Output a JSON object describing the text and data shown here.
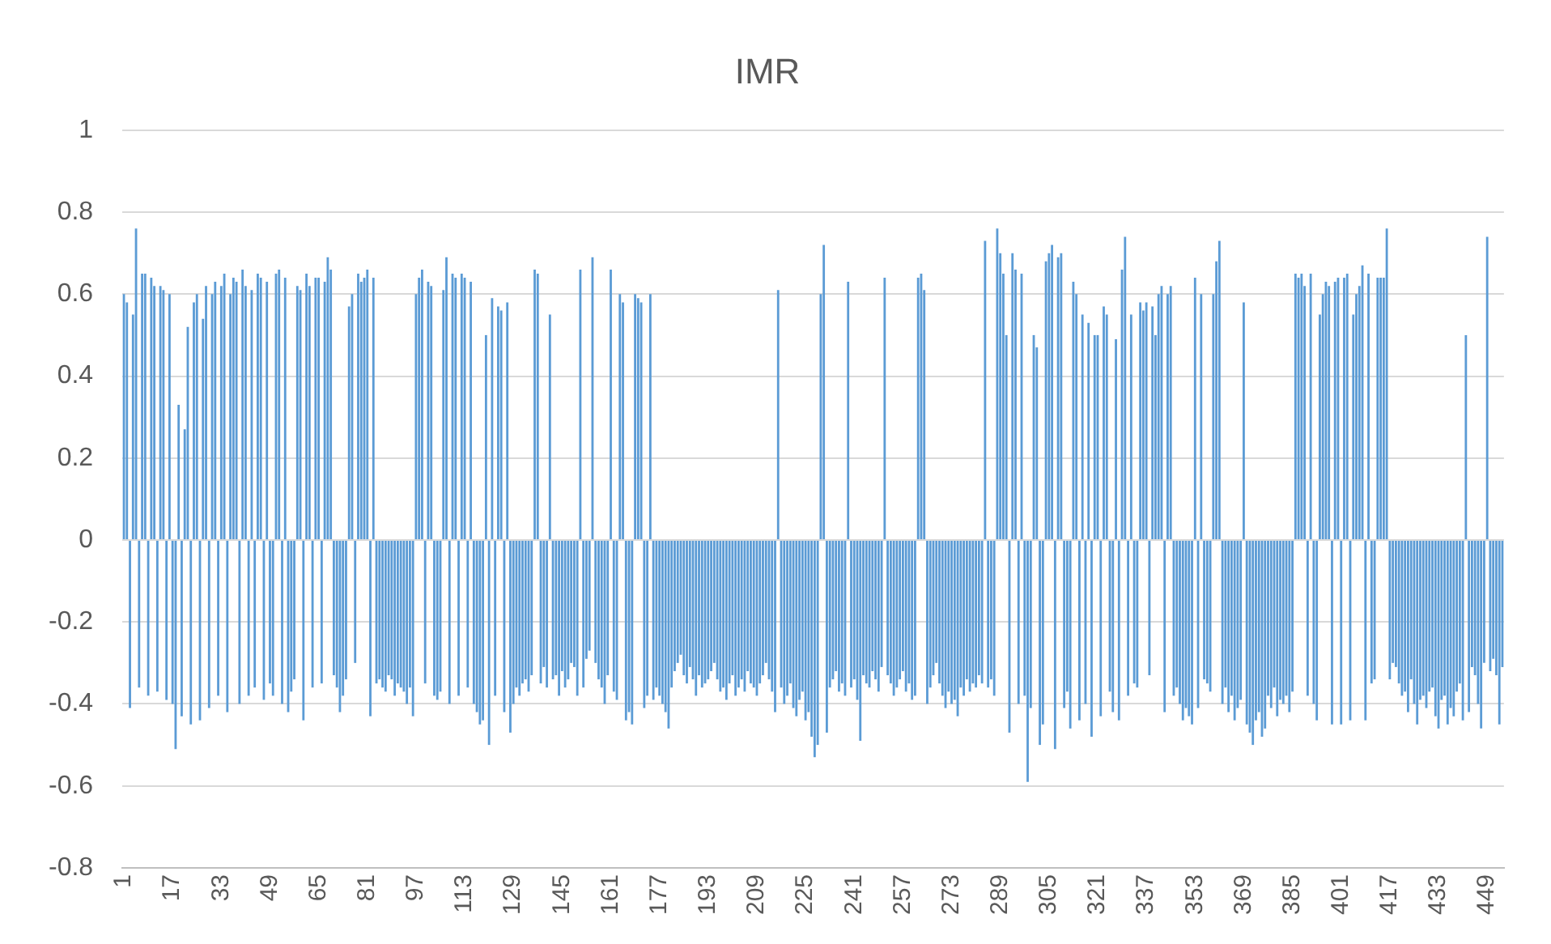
{
  "chart_data": {
    "type": "bar",
    "title": "IMR",
    "color": "#5b9bd5",
    "ylim": [
      -0.8,
      1
    ],
    "yticks": [
      -0.8,
      -0.6,
      -0.4,
      -0.2,
      0,
      0.2,
      0.4,
      0.6,
      0.8,
      1
    ],
    "grid": "y",
    "categories": [
      "1",
      null,
      null,
      null,
      null,
      null,
      null,
      null,
      null,
      null,
      null,
      null,
      null,
      null,
      null,
      null,
      "17",
      null,
      null,
      null,
      null,
      null,
      null,
      null,
      null,
      null,
      null,
      null,
      null,
      null,
      null,
      null,
      "33",
      null,
      null,
      null,
      null,
      null,
      null,
      null,
      null,
      null,
      null,
      null,
      null,
      null,
      null,
      null,
      "49",
      null,
      null,
      null,
      null,
      null,
      null,
      null,
      null,
      null,
      null,
      null,
      null,
      null,
      null,
      null,
      "65",
      null,
      null,
      null,
      null,
      null,
      null,
      null,
      null,
      null,
      null,
      null,
      null,
      null,
      null,
      null,
      "81",
      null,
      null,
      null,
      null,
      null,
      null,
      null,
      null,
      null,
      null,
      null,
      null,
      null,
      null,
      null,
      "97",
      null,
      null,
      null,
      null,
      null,
      null,
      null,
      null,
      null,
      null,
      null,
      null,
      null,
      null,
      null,
      "113",
      null,
      null,
      null,
      null,
      null,
      null,
      null,
      null,
      null,
      null,
      null,
      null,
      null,
      null,
      null,
      "129",
      null,
      null,
      null,
      null,
      null,
      null,
      null,
      null,
      null,
      null,
      null,
      null,
      null,
      null,
      null,
      "145",
      null,
      null,
      null,
      null,
      null,
      null,
      null,
      null,
      null,
      null,
      null,
      null,
      null,
      null,
      null,
      "161",
      null,
      null,
      null,
      null,
      null,
      null,
      null,
      null,
      null,
      null,
      null,
      null,
      null,
      null,
      null,
      "177",
      null,
      null,
      null,
      null,
      null,
      null,
      null,
      null,
      null,
      null,
      null,
      null,
      null,
      null,
      null,
      "193",
      null,
      null,
      null,
      null,
      null,
      null,
      null,
      null,
      null,
      null,
      null,
      null,
      null,
      null,
      null,
      "209",
      null,
      null,
      null,
      null,
      null,
      null,
      null,
      null,
      null,
      null,
      null,
      null,
      null,
      null,
      null,
      "225",
      null,
      null,
      null,
      null,
      null,
      null,
      null,
      null,
      null,
      null,
      null,
      null,
      null,
      null,
      null,
      "241",
      null,
      null,
      null,
      null,
      null,
      null,
      null,
      null,
      null,
      null,
      null,
      null,
      null,
      null,
      null,
      "257",
      null,
      null,
      null,
      null,
      null,
      null,
      null,
      null,
      null,
      null,
      null,
      null,
      null,
      null,
      null,
      "273",
      null,
      null,
      null,
      null,
      null,
      null,
      null,
      null,
      null,
      null,
      null,
      null,
      null,
      null,
      null,
      "289",
      null,
      null,
      null,
      null,
      null,
      null,
      null,
      null,
      null,
      null,
      null,
      null,
      null,
      null,
      null,
      "305",
      null,
      null,
      null,
      null,
      null,
      null,
      null,
      null,
      null,
      null,
      null,
      null,
      null,
      null,
      null,
      "321",
      null,
      null,
      null,
      null,
      null,
      null,
      null,
      null,
      null,
      null,
      null,
      null,
      null,
      null,
      null,
      "337",
      null,
      null,
      null,
      null,
      null,
      null,
      null,
      null,
      null,
      null,
      null,
      null,
      null,
      null,
      null,
      "353",
      null,
      null,
      null,
      null,
      null,
      null,
      null,
      null,
      null,
      null,
      null,
      null,
      null,
      null,
      null,
      "369",
      null,
      null,
      null,
      null,
      null,
      null,
      null,
      null,
      null,
      null,
      null,
      null,
      null,
      null,
      null,
      "385",
      null,
      null,
      null,
      null,
      null,
      null,
      null,
      null,
      null,
      null,
      null,
      null,
      null,
      null,
      null,
      "401",
      null,
      null,
      null,
      null,
      null,
      null,
      null,
      null,
      null,
      null,
      null,
      null,
      null,
      null,
      null,
      "417",
      null,
      null,
      null,
      null,
      null,
      null,
      null,
      null,
      null,
      null,
      null,
      null,
      null,
      null,
      null,
      "433",
      null,
      null,
      null,
      null,
      null,
      null,
      null,
      null,
      null,
      null,
      null,
      null,
      null,
      null,
      null,
      "449",
      null,
      null,
      null,
      null,
      null
    ],
    "values": [
      0.6,
      0.58,
      -0.41,
      0.55,
      0.76,
      -0.36,
      0.65,
      0.65,
      -0.38,
      0.64,
      0.62,
      -0.37,
      0.62,
      0.61,
      -0.39,
      0.6,
      -0.4,
      -0.51,
      0.33,
      -0.43,
      0.27,
      0.52,
      -0.45,
      0.58,
      0.6,
      -0.44,
      0.54,
      0.62,
      -0.41,
      0.6,
      0.63,
      -0.38,
      0.62,
      0.65,
      -0.42,
      0.6,
      0.64,
      0.63,
      -0.4,
      0.66,
      0.62,
      -0.38,
      0.61,
      -0.36,
      0.65,
      0.64,
      -0.39,
      0.63,
      -0.35,
      -0.38,
      0.65,
      0.66,
      -0.4,
      0.64,
      -0.42,
      -0.37,
      -0.34,
      0.62,
      0.61,
      -0.44,
      0.65,
      0.62,
      -0.36,
      0.64,
      0.64,
      -0.35,
      0.63,
      0.69,
      0.66,
      -0.33,
      -0.36,
      -0.42,
      -0.38,
      -0.34,
      0.57,
      0.6,
      -0.3,
      0.65,
      0.63,
      0.64,
      0.66,
      -0.43,
      0.64,
      -0.35,
      -0.34,
      -0.36,
      -0.37,
      -0.33,
      -0.34,
      -0.38,
      -0.35,
      -0.36,
      -0.37,
      -0.4,
      -0.36,
      -0.43,
      0.6,
      0.64,
      0.66,
      -0.35,
      0.63,
      0.62,
      -0.38,
      -0.39,
      -0.37,
      0.61,
      0.69,
      -0.4,
      0.65,
      0.64,
      -0.38,
      0.65,
      0.64,
      -0.36,
      0.63,
      -0.4,
      -0.42,
      -0.45,
      -0.44,
      0.5,
      -0.5,
      0.59,
      -0.38,
      0.57,
      0.56,
      -0.42,
      0.58,
      -0.47,
      -0.4,
      -0.36,
      -0.38,
      -0.35,
      -0.34,
      -0.37,
      -0.33,
      0.66,
      0.65,
      -0.35,
      -0.31,
      -0.36,
      0.55,
      -0.34,
      -0.33,
      -0.38,
      -0.32,
      -0.36,
      -0.34,
      -0.3,
      -0.31,
      -0.38,
      0.66,
      -0.36,
      -0.29,
      -0.27,
      0.69,
      -0.3,
      -0.34,
      -0.36,
      -0.4,
      -0.33,
      0.66,
      -0.37,
      -0.39,
      0.6,
      0.58,
      -0.44,
      -0.42,
      -0.45,
      0.6,
      0.59,
      0.58,
      -0.41,
      -0.38,
      0.6,
      -0.39,
      -0.36,
      -0.38,
      -0.4,
      -0.42,
      -0.46,
      -0.36,
      -0.32,
      -0.3,
      -0.28,
      -0.33,
      -0.35,
      -0.31,
      -0.34,
      -0.38,
      -0.33,
      -0.36,
      -0.35,
      -0.34,
      -0.32,
      -0.3,
      -0.34,
      -0.37,
      -0.36,
      -0.39,
      -0.35,
      -0.33,
      -0.38,
      -0.36,
      -0.34,
      -0.37,
      -0.32,
      -0.35,
      -0.36,
      -0.38,
      -0.35,
      -0.33,
      -0.3,
      -0.34,
      -0.37,
      -0.42,
      0.61,
      -0.36,
      -0.4,
      -0.38,
      -0.35,
      -0.41,
      -0.43,
      -0.39,
      -0.37,
      -0.44,
      -0.42,
      -0.48,
      -0.53,
      -0.5,
      0.6,
      0.72,
      -0.47,
      -0.36,
      -0.34,
      -0.32,
      -0.37,
      -0.35,
      -0.38,
      0.63,
      -0.36,
      -0.34,
      -0.39,
      -0.49,
      -0.33,
      -0.35,
      -0.36,
      -0.32,
      -0.34,
      -0.37,
      -0.31,
      0.64,
      -0.33,
      -0.35,
      -0.38,
      -0.36,
      -0.34,
      -0.32,
      -0.37,
      -0.35,
      -0.39,
      -0.38,
      0.64,
      0.65,
      0.61,
      -0.4,
      -0.36,
      -0.33,
      -0.3,
      -0.35,
      -0.38,
      -0.41,
      -0.37,
      -0.4,
      -0.39,
      -0.43,
      -0.36,
      -0.38,
      -0.34,
      -0.37,
      -0.35,
      -0.36,
      -0.33,
      -0.35,
      0.73,
      -0.36,
      -0.34,
      -0.38,
      0.76,
      0.7,
      0.65,
      0.5,
      -0.47,
      0.7,
      0.66,
      -0.4,
      0.65,
      -0.38,
      -0.59,
      -0.41,
      0.5,
      0.47,
      -0.5,
      -0.45,
      0.68,
      0.7,
      0.72,
      -0.51,
      0.69,
      0.7,
      -0.41,
      -0.37,
      -0.46,
      0.63,
      0.6,
      -0.44,
      0.55,
      -0.4,
      0.53,
      -0.48,
      0.5,
      0.5,
      -0.43,
      0.57,
      0.55,
      -0.37,
      -0.42,
      0.49,
      -0.44,
      0.66,
      0.74,
      -0.38,
      0.55,
      -0.35,
      -0.36,
      0.58,
      0.56,
      0.58,
      -0.33,
      0.57,
      0.5,
      0.6,
      0.62,
      -0.42,
      0.6,
      0.62,
      -0.38,
      -0.36,
      -0.4,
      -0.44,
      -0.41,
      -0.43,
      -0.45,
      0.64,
      -0.41,
      0.6,
      -0.34,
      -0.35,
      -0.37,
      0.6,
      0.68,
      0.73,
      -0.4,
      -0.36,
      -0.42,
      -0.38,
      -0.44,
      -0.41,
      -0.39,
      0.58,
      -0.45,
      -0.47,
      -0.5,
      -0.44,
      -0.42,
      -0.48,
      -0.46,
      -0.38,
      -0.41,
      -0.36,
      -0.43,
      -0.39,
      -0.4,
      -0.38,
      -0.42,
      -0.37,
      0.65,
      0.64,
      0.65,
      0.62,
      -0.38,
      0.65,
      -0.4,
      -0.44,
      0.55,
      0.6,
      0.63,
      0.62,
      -0.45,
      0.63,
      0.64,
      -0.45,
      0.64,
      0.65,
      -0.44,
      0.55,
      0.6,
      0.62,
      0.67,
      -0.44,
      0.65,
      -0.35,
      -0.34,
      0.64,
      0.64,
      0.64,
      0.76,
      -0.34,
      -0.3,
      -0.31,
      -0.35,
      -0.38,
      -0.37,
      -0.42,
      -0.34,
      -0.4,
      -0.45,
      -0.39,
      -0.38,
      -0.41,
      -0.37,
      -0.36,
      -0.43,
      -0.46,
      -0.39,
      -0.38,
      -0.45,
      -0.41,
      -0.43,
      -0.37,
      -0.35,
      -0.44,
      0.5,
      -0.42,
      -0.31,
      -0.33,
      -0.4,
      -0.46,
      -0.3,
      0.74,
      -0.32,
      -0.29,
      -0.33,
      -0.45,
      -0.31
    ]
  }
}
